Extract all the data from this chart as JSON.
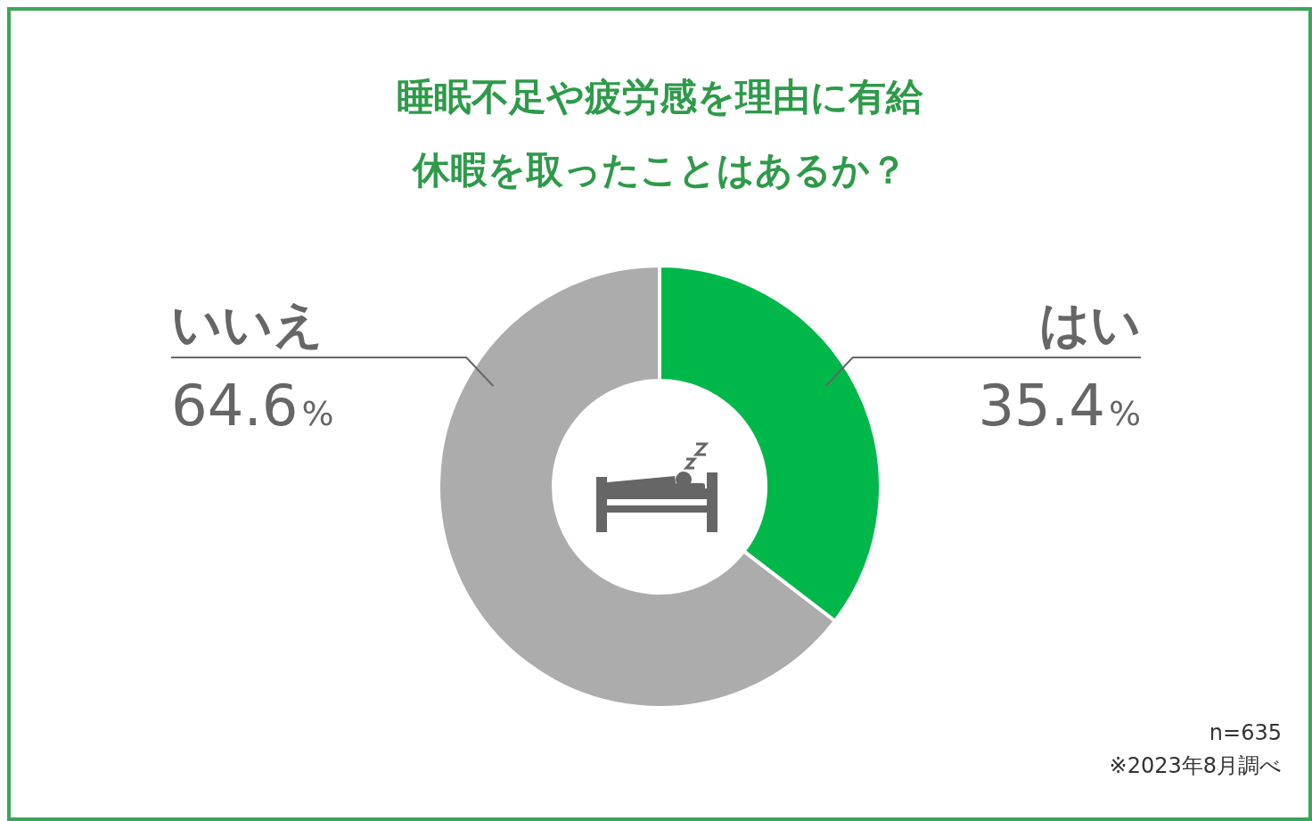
{
  "chart_data": {
    "type": "donut",
    "title": "睡眠不足や疲労感を理由に有給休暇を取ったことはあるか？",
    "categories": [
      "はい",
      "いいえ"
    ],
    "values": [
      35.4,
      64.6
    ],
    "colors": [
      "#00b84a",
      "#acacac"
    ],
    "value_labels": [
      "35.4%",
      "64.6%"
    ],
    "legend": false,
    "annotations": [
      "n=635",
      "※2023年8月調べ"
    ]
  }
}
